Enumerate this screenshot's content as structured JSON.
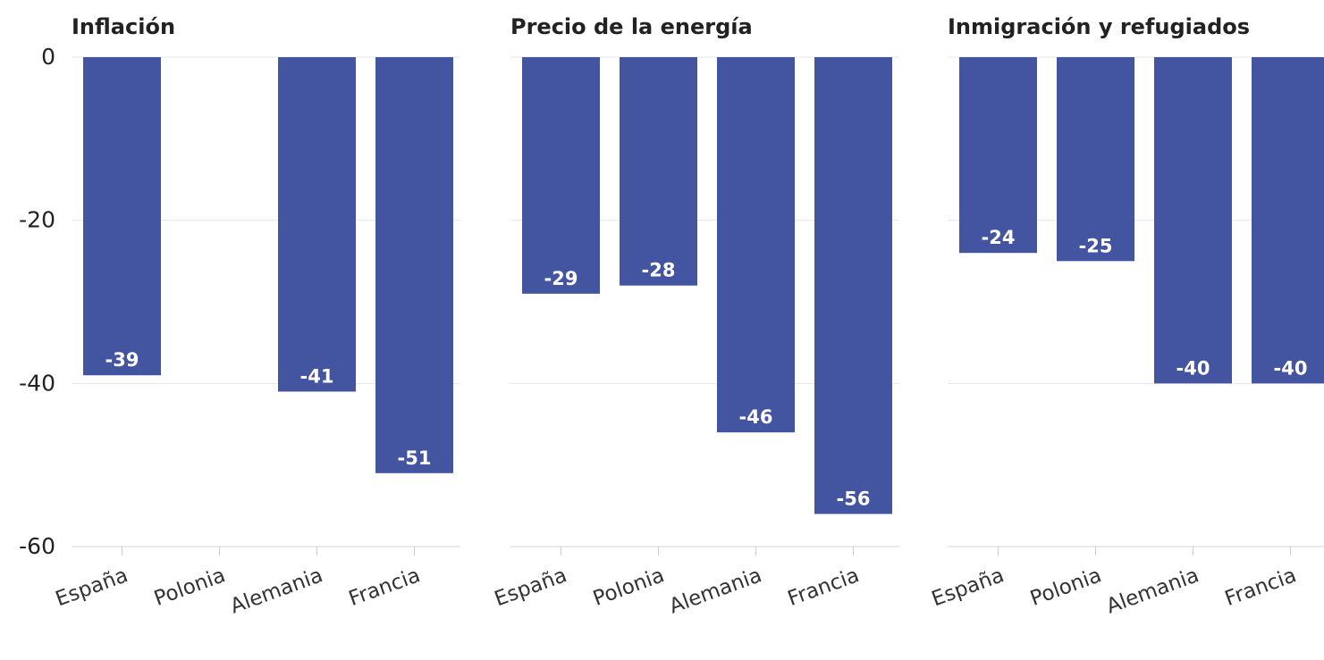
{
  "chart_data": [
    {
      "type": "bar",
      "title": "Inflación",
      "categories": [
        "España",
        "Polonia",
        "Alemania",
        "Francia"
      ],
      "values": [
        -39,
        null,
        -41,
        -51
      ],
      "ylim": [
        -60,
        0
      ],
      "yticks": [
        "0",
        "-20",
        "-40",
        "-60"
      ],
      "bar_color": "#4354A1",
      "grid": true
    },
    {
      "type": "bar",
      "title": "Precio de la energía",
      "categories": [
        "España",
        "Polonia",
        "Alemania",
        "Francia"
      ],
      "values": [
        -29,
        -28,
        -46,
        -56
      ],
      "ylim": [
        -60,
        0
      ],
      "bar_color": "#4354A1",
      "grid": true
    },
    {
      "type": "bar",
      "title": "Inmigración y refugiados",
      "categories": [
        "España",
        "Polonia",
        "Alemania",
        "Francia"
      ],
      "values": [
        -24,
        -25,
        -40,
        -40
      ],
      "ylim": [
        -60,
        0
      ],
      "bar_color": "#4354A1",
      "grid": true
    }
  ]
}
